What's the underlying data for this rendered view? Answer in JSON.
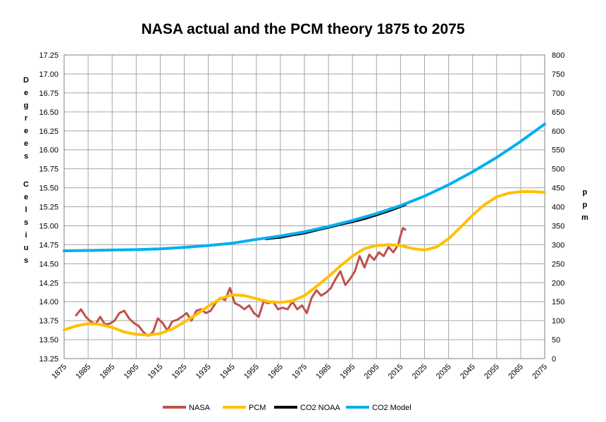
{
  "chart_data": {
    "type": "line",
    "title": "NASA actual and the PCM theory 1875 to 2075",
    "xlim": [
      1875,
      2075
    ],
    "x_ticks": [
      1875,
      1885,
      1895,
      1905,
      1915,
      1925,
      1935,
      1945,
      1955,
      1965,
      1975,
      1985,
      1995,
      2005,
      2015,
      2025,
      2035,
      2045,
      2055,
      2065,
      2075
    ],
    "y_left": {
      "label_lines": [
        "Degrees",
        "Celsius"
      ],
      "lim": [
        13.25,
        17.25
      ],
      "ticks": [
        "13.25",
        "13.50",
        "13.75",
        "14.00",
        "14.25",
        "14.50",
        "14.75",
        "15.00",
        "15.25",
        "15.50",
        "15.75",
        "16.00",
        "16.25",
        "16.50",
        "16.75",
        "17.00",
        "17.25"
      ]
    },
    "y_right": {
      "label": "ppm",
      "lim": [
        0,
        800
      ],
      "ticks": [
        "0",
        "50",
        "100",
        "150",
        "200",
        "250",
        "300",
        "350",
        "400",
        "450",
        "500",
        "550",
        "600",
        "650",
        "700",
        "750",
        "800"
      ]
    },
    "grid": true,
    "legend_position": "bottom",
    "series": [
      {
        "name": "NASA",
        "axis": "left",
        "color": "#c0504d",
        "x": [
          1880,
          1882,
          1884,
          1886,
          1888,
          1890,
          1892,
          1894,
          1896,
          1898,
          1900,
          1902,
          1904,
          1906,
          1908,
          1910,
          1912,
          1914,
          1916,
          1918,
          1920,
          1922,
          1924,
          1926,
          1928,
          1930,
          1932,
          1934,
          1936,
          1938,
          1940,
          1942,
          1944,
          1946,
          1948,
          1950,
          1952,
          1954,
          1956,
          1958,
          1960,
          1962,
          1964,
          1966,
          1968,
          1970,
          1972,
          1974,
          1976,
          1978,
          1980,
          1982,
          1984,
          1986,
          1988,
          1990,
          1992,
          1994,
          1996,
          1998,
          2000,
          2002,
          2004,
          2006,
          2008,
          2010,
          2012,
          2014,
          2015,
          2016,
          2017
        ],
        "y": [
          13.82,
          13.9,
          13.8,
          13.74,
          13.7,
          13.8,
          13.7,
          13.71,
          13.75,
          13.85,
          13.88,
          13.78,
          13.72,
          13.68,
          13.6,
          13.55,
          13.6,
          13.78,
          13.72,
          13.62,
          13.74,
          13.76,
          13.8,
          13.85,
          13.75,
          13.88,
          13.9,
          13.85,
          13.88,
          13.98,
          14.05,
          14.02,
          14.18,
          13.98,
          13.95,
          13.9,
          13.95,
          13.85,
          13.8,
          14.0,
          13.98,
          14.0,
          13.9,
          13.92,
          13.9,
          14.0,
          13.9,
          13.95,
          13.85,
          14.05,
          14.15,
          14.08,
          14.12,
          14.18,
          14.3,
          14.4,
          14.22,
          14.3,
          14.4,
          14.6,
          14.45,
          14.62,
          14.55,
          14.65,
          14.6,
          14.72,
          14.65,
          14.75,
          14.87,
          14.97,
          14.95
        ]
      },
      {
        "name": "PCM",
        "axis": "left",
        "color": "#ffc000",
        "x": [
          1875,
          1880,
          1885,
          1890,
          1895,
          1900,
          1905,
          1910,
          1915,
          1920,
          1925,
          1930,
          1935,
          1940,
          1945,
          1950,
          1955,
          1960,
          1965,
          1970,
          1975,
          1980,
          1985,
          1990,
          1995,
          2000,
          2005,
          2010,
          2015,
          2020,
          2025,
          2030,
          2035,
          2040,
          2045,
          2050,
          2055,
          2060,
          2065,
          2070,
          2075
        ],
        "y": [
          13.63,
          13.68,
          13.71,
          13.7,
          13.66,
          13.6,
          13.57,
          13.56,
          13.58,
          13.64,
          13.73,
          13.83,
          13.94,
          14.04,
          14.09,
          14.08,
          14.04,
          14.0,
          13.99,
          14.01,
          14.08,
          14.2,
          14.33,
          14.47,
          14.6,
          14.7,
          14.74,
          14.75,
          14.74,
          14.7,
          14.68,
          14.72,
          14.83,
          14.98,
          15.14,
          15.28,
          15.38,
          15.43,
          15.45,
          15.45,
          15.44
        ]
      },
      {
        "name": "CO2 NOAA",
        "axis": "right",
        "color": "#000000",
        "x": [
          1959,
          1965,
          1970,
          1975,
          1980,
          1985,
          1990,
          1995,
          2000,
          2005,
          2010,
          2015,
          2017
        ],
        "y": [
          316,
          320,
          326,
          331,
          339,
          346,
          354,
          361,
          369,
          379,
          389,
          401,
          406
        ]
      },
      {
        "name": "CO2 Model",
        "axis": "right",
        "color": "#00b0f0",
        "x": [
          1875,
          1885,
          1895,
          1905,
          1915,
          1925,
          1935,
          1945,
          1955,
          1965,
          1975,
          1985,
          1995,
          2005,
          2015,
          2025,
          2035,
          2045,
          2055,
          2065,
          2075
        ],
        "y": [
          284,
          285,
          286,
          287,
          289,
          293,
          298,
          304,
          314,
          323,
          334,
          348,
          364,
          382,
          403,
          428,
          458,
          492,
          530,
          572,
          618
        ]
      }
    ]
  }
}
